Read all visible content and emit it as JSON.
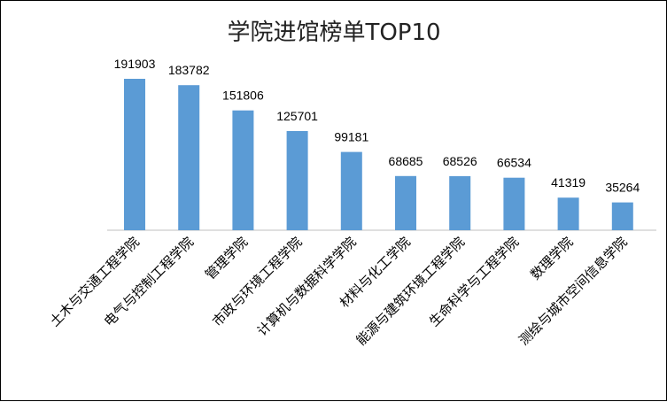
{
  "chart_data": {
    "type": "bar",
    "title": "学院进馆榜单TOP10",
    "xlabel": "",
    "ylabel": "",
    "ylim": [
      0,
      200000
    ],
    "grid": false,
    "legend": "none",
    "bar_color": "#5B9BD5",
    "categories": [
      "土木与交通工程学院",
      "电气与控制工程学院",
      "管理学院",
      "市政与环境工程学院",
      "计算机与数据科学学院",
      "材料与化工学院",
      "能源与建筑环境工程学院",
      "生命科学与工程学院",
      "数理学院",
      "测绘与城市空间信息学院"
    ],
    "values": [
      191903,
      183782,
      151806,
      125701,
      99181,
      68685,
      68526,
      66534,
      41319,
      35264
    ]
  }
}
